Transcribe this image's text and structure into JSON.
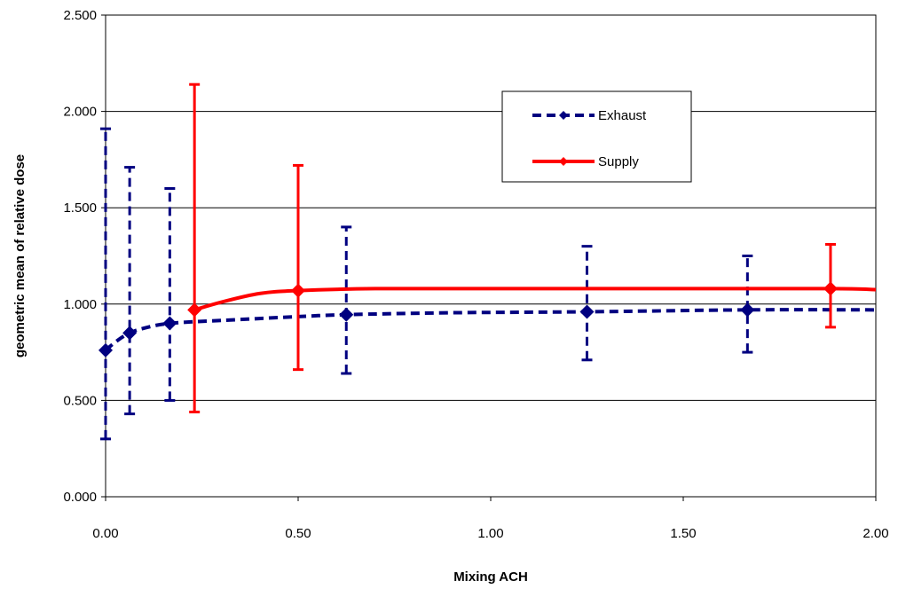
{
  "chart_data": {
    "type": "line",
    "title": "",
    "xlabel": "Mixing ACH",
    "ylabel": "geometric mean of relative dose",
    "xlim": [
      0,
      2
    ],
    "ylim": [
      0,
      2.5
    ],
    "x_ticks": [
      "0.00",
      "0.50",
      "1.00",
      "1.50",
      "2.00"
    ],
    "y_ticks": [
      "0.000",
      "0.500",
      "1.000",
      "1.500",
      "2.000",
      "2.500"
    ],
    "grid": "horizontal",
    "legend_position": "top-right",
    "series": [
      {
        "name": "Exhaust",
        "color": "#000080",
        "line_style": "dashed",
        "marker": "diamond",
        "points": [
          {
            "x": 0.0,
            "y": 0.76,
            "err_low": 0.3,
            "err_high": 1.91
          },
          {
            "x": 0.0625,
            "y": 0.85,
            "err_low": 0.43,
            "err_high": 1.71
          },
          {
            "x": 0.1667,
            "y": 0.9,
            "err_low": 0.5,
            "err_high": 1.6
          },
          {
            "x": 0.625,
            "y": 0.945,
            "err_low": 0.64,
            "err_high": 1.4
          },
          {
            "x": 1.25,
            "y": 0.96,
            "err_low": 0.71,
            "err_high": 1.3
          },
          {
            "x": 1.6667,
            "y": 0.97,
            "err_low": 0.75,
            "err_high": 1.25
          }
        ],
        "curve": [
          [
            0.0,
            0.76
          ],
          [
            0.03,
            0.81
          ],
          [
            0.0625,
            0.85
          ],
          [
            0.1,
            0.875
          ],
          [
            0.1667,
            0.9
          ],
          [
            0.3,
            0.915
          ],
          [
            0.5,
            0.935
          ],
          [
            0.625,
            0.945
          ],
          [
            0.9,
            0.955
          ],
          [
            1.25,
            0.96
          ],
          [
            1.6667,
            0.97
          ],
          [
            2.0,
            0.97
          ]
        ]
      },
      {
        "name": "Supply",
        "color": "#ff0000",
        "line_style": "solid",
        "marker": "diamond",
        "points": [
          {
            "x": 0.2308,
            "y": 0.97,
            "err_low": 0.44,
            "err_high": 2.14
          },
          {
            "x": 0.5,
            "y": 1.07,
            "err_low": 0.66,
            "err_high": 1.72
          },
          {
            "x": 1.8824,
            "y": 1.08,
            "err_low": 0.88,
            "err_high": 1.31
          }
        ],
        "curve": [
          [
            0.2308,
            0.97
          ],
          [
            0.3,
            1.01
          ],
          [
            0.4,
            1.055
          ],
          [
            0.5,
            1.07
          ],
          [
            0.7,
            1.08
          ],
          [
            1.0,
            1.08
          ],
          [
            1.5,
            1.08
          ],
          [
            1.8824,
            1.08
          ],
          [
            2.0,
            1.075
          ]
        ]
      }
    ]
  }
}
